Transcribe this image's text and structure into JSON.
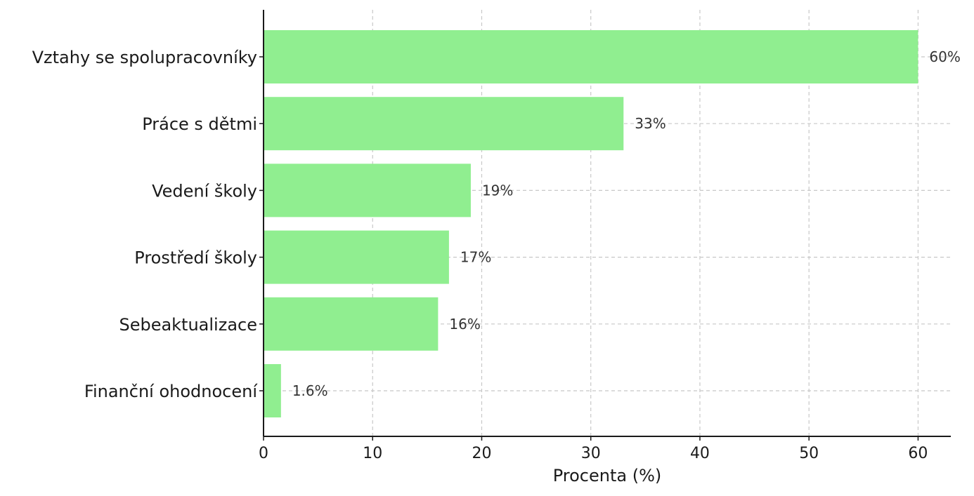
{
  "chart_data": {
    "type": "bar",
    "orientation": "horizontal",
    "title": "",
    "xlabel": "Procenta (%)",
    "ylabel": "",
    "xlim": [
      0,
      63
    ],
    "xticks": [
      0,
      10,
      20,
      30,
      40,
      50,
      60
    ],
    "grid": true,
    "categories": [
      "Vztahy se spolupracovníky",
      "Práce s dětmi",
      "Vedení školy",
      "Prostředí školy",
      "Sebeaktualizace",
      "Finanční ohodnocení"
    ],
    "values": [
      60,
      33,
      19,
      17,
      16,
      1.6
    ],
    "data_labels": [
      "60%",
      "33%",
      "19%",
      "17%",
      "16%",
      "1.6%"
    ],
    "bar_color": "#90ee90"
  }
}
